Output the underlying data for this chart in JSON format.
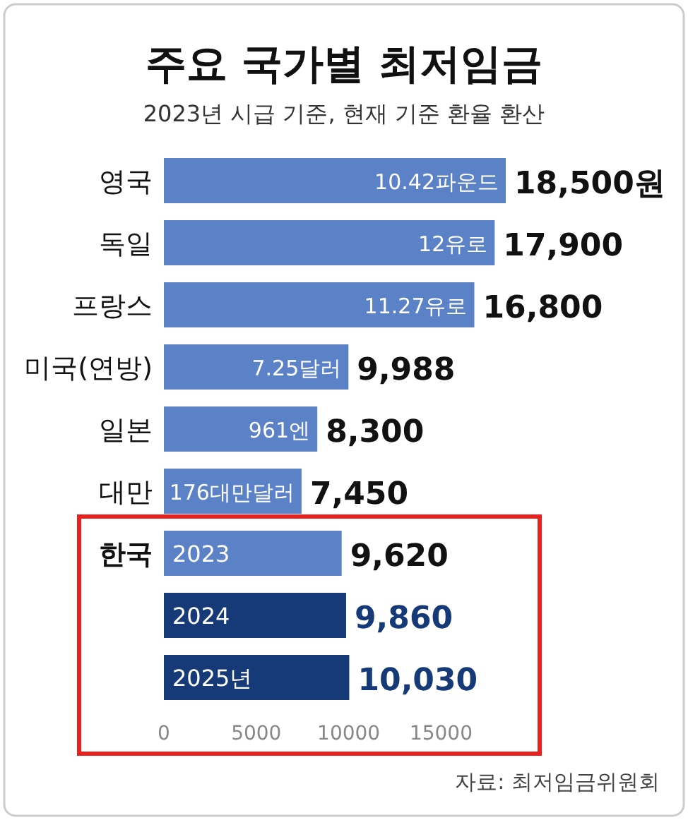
{
  "chart_data": {
    "type": "bar",
    "orientation": "horizontal",
    "title": "주요 국가별 최저임금",
    "subtitle": "2023년 시급 기준, 현재 기준 환율 환산",
    "categories": [
      "영국",
      "독일",
      "프랑스",
      "미국(연방)",
      "일본",
      "대만",
      "한국",
      null,
      null
    ],
    "values": [
      18500,
      17900,
      16800,
      9988,
      8300,
      7450,
      9620,
      9860,
      10030
    ],
    "colors": [
      "#5b81c7",
      "#5b81c7",
      "#5b81c7",
      "#5b81c7",
      "#5b81c7",
      "#5b81c7",
      "#5b81c7",
      "#163a78",
      "#163a78"
    ],
    "value_labels": [
      "18,500원",
      "17,900",
      "16,800",
      "9,988",
      "8,300",
      "7,450",
      "9,620",
      "9,860",
      "10,030"
    ],
    "annotations": [
      "10.42파운드",
      "12유로",
      "11.27유로",
      "7.25달러",
      "961엔",
      "176대만달러",
      "2023",
      "2024",
      "2025년",
      "자료: 최저임금위원회"
    ],
    "xlim": [
      0,
      18500
    ],
    "xticks": [
      0,
      5000,
      10000,
      15000
    ],
    "grid": false
  }
}
